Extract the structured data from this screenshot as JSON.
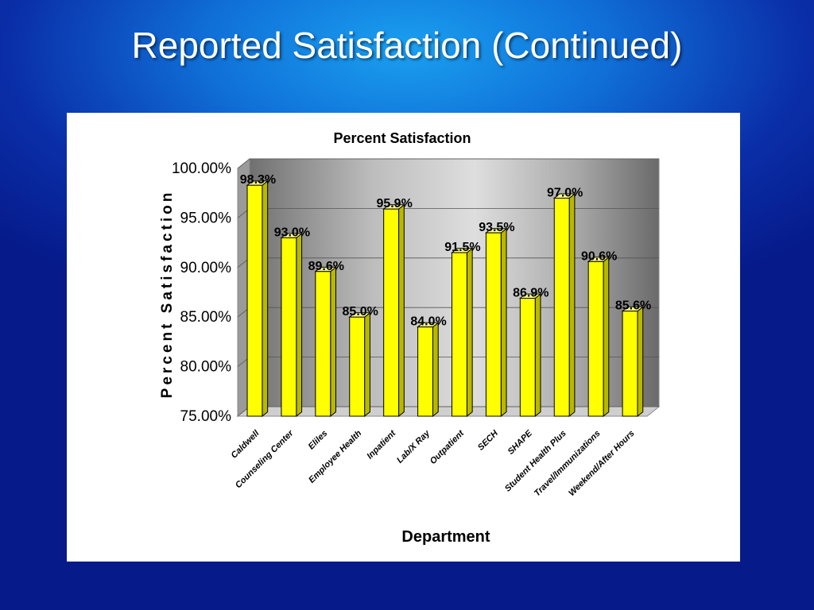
{
  "slide": {
    "title": "Reported Satisfaction (Continued)"
  },
  "colors": {
    "bar": "#ffff00",
    "bar_side": "#b8b800",
    "bar_top": "#ffff90",
    "bar_outline": "#000000"
  },
  "chart_data": {
    "type": "bar",
    "title": "Percent Satisfaction",
    "xlabel": "Department",
    "ylabel": "Percent Satisfaction",
    "ylim": [
      75,
      100
    ],
    "yticks": [
      "75.00%",
      "80.00%",
      "85.00%",
      "90.00%",
      "95.00%",
      "100.00%"
    ],
    "grid": true,
    "categories": [
      "Caldwell",
      "Counseling Center",
      "Eliles",
      "Employee Health",
      "Inpatient",
      "Lab/X Ray",
      "Outpatient",
      "SECH",
      "SHAPE",
      "Student Health Plus",
      "Travel/Immunizations",
      "Weekend/After Hours"
    ],
    "values": [
      98.3,
      93.0,
      89.6,
      85.0,
      95.9,
      84.0,
      91.5,
      93.5,
      86.9,
      97.0,
      90.6,
      85.6
    ],
    "data_labels": [
      "98.3%",
      "93.0%",
      "89.6%",
      "85.0%",
      "95.9%",
      "84.0%",
      "91.5%",
      "93.5%",
      "86.9%",
      "97.0%",
      "90.6%",
      "85.6%"
    ]
  }
}
